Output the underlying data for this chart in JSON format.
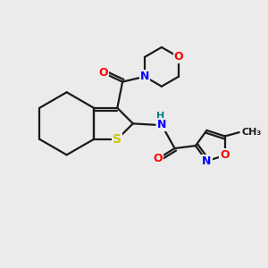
{
  "bg_color": "#ebebeb",
  "bond_color": "#1a1a1a",
  "bond_width": 1.6,
  "atom_colors": {
    "S": "#c8c800",
    "O": "#ff0000",
    "N": "#0000ff",
    "H": "#008080",
    "C": "#1a1a1a"
  },
  "font_size": 9,
  "figsize": [
    3.0,
    3.0
  ],
  "dpi": 100
}
